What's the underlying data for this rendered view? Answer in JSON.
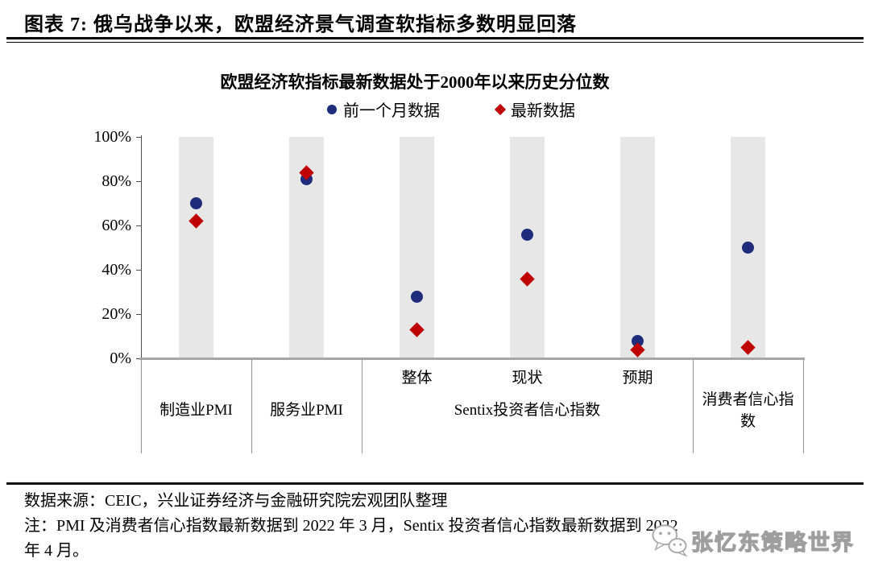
{
  "header": {
    "title": "图表 7: 俄乌战争以来，欧盟经济景气调查软指标多数明显回落"
  },
  "chart_data": {
    "type": "scatter",
    "title": "欧盟经济软指标最新数据处于2000年以来历史分位数",
    "categories": [
      "制造业PMI",
      "服务业PMI",
      "Sentix投资者信心指数-整体",
      "Sentix投资者信心指数-现状",
      "Sentix投资者信心指数-预期",
      "消费者信心指数"
    ],
    "sub_labels": [
      "",
      "",
      "整体",
      "现状",
      "预期",
      ""
    ],
    "groups": [
      {
        "label": "制造业PMI",
        "span": 1
      },
      {
        "label": "服务业PMI",
        "span": 1
      },
      {
        "label": "Sentix投资者信心指数",
        "span": 3
      },
      {
        "label": "消费者信心指数",
        "span": 1
      }
    ],
    "series": [
      {
        "name": "前一个月数据",
        "marker": "circle",
        "color": "#1F2B7B",
        "values": [
          70,
          81,
          28,
          56,
          8,
          50
        ]
      },
      {
        "name": "最新数据",
        "marker": "diamond",
        "color": "#C00000",
        "values": [
          62,
          84,
          13,
          36,
          4,
          5
        ]
      }
    ],
    "unit": "%",
    "ylim": [
      0,
      100
    ],
    "yticks": [
      0,
      20,
      40,
      60,
      80,
      100
    ],
    "grid": false,
    "legend_position": "top",
    "background_bars": {
      "enabled": true,
      "color": "#E7E7E7"
    }
  },
  "footer": {
    "source": "数据来源：CEIC，兴业证券经济与金融研究院宏观团队整理",
    "note_line1": "注：PMI 及消费者信心指数最新数据到 2022 年 3 月，Sentix 投资者信心指数最新数据到 2022",
    "note_line2": "年 4 月。"
  },
  "watermark": {
    "text": "张忆东策略世界"
  }
}
